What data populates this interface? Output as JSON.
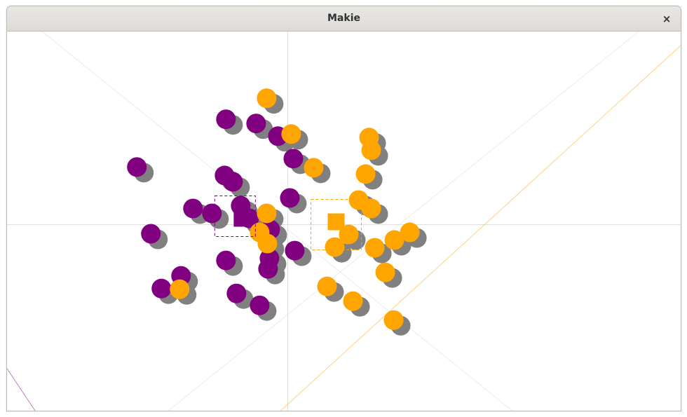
{
  "window": {
    "title": "Makie",
    "close_glyph": "×",
    "close_icon": "close-icon"
  },
  "colors": {
    "titlebar": "#e3e1de",
    "axis": "#dddddd",
    "shadow": "#808080",
    "series_a": "#800080",
    "series_b": "#ffa500"
  },
  "chart_data": {
    "type": "scatter",
    "title": "",
    "xlabel": "",
    "ylabel": "",
    "xlim": [
      -4,
      5.6
    ],
    "ylim": [
      -2.65,
      2.75
    ],
    "grid": false,
    "series": [
      {
        "color": "#800080",
        "shadow_offset": [
          0.1,
          -0.08
        ],
        "center_marker": [
          -0.65,
          0.09
        ],
        "points": [
          [
            -0.88,
            1.5
          ],
          [
            -0.45,
            1.44
          ],
          [
            -0.14,
            1.26
          ],
          [
            0.08,
            0.94
          ],
          [
            -2.15,
            0.82
          ],
          [
            -0.9,
            0.7
          ],
          [
            -0.78,
            0.61
          ],
          [
            0.03,
            0.38
          ],
          [
            -1.35,
            0.23
          ],
          [
            -0.67,
            0.27
          ],
          [
            -1.08,
            0.16
          ],
          [
            -0.55,
            0.09
          ],
          [
            -0.25,
            -0.07
          ],
          [
            -1.95,
            -0.13
          ],
          [
            0.1,
            -0.37
          ],
          [
            -0.88,
            -0.51
          ],
          [
            -0.26,
            -0.48
          ],
          [
            -0.28,
            -0.63
          ],
          [
            -1.52,
            -0.73
          ],
          [
            -1.8,
            -0.91
          ],
          [
            -0.73,
            -0.98
          ],
          [
            -0.4,
            -1.15
          ]
        ]
      },
      {
        "color": "#ffa500",
        "shadow_offset": [
          0.1,
          -0.08
        ],
        "center_marker": [
          0.69,
          0.04
        ],
        "points": [
          [
            -0.3,
            1.8
          ],
          [
            0.05,
            1.29
          ],
          [
            0.37,
            0.81
          ],
          [
            1.16,
            1.24
          ],
          [
            1.19,
            1.06
          ],
          [
            1.11,
            0.72
          ],
          [
            1.01,
            0.35
          ],
          [
            1.19,
            0.23
          ],
          [
            -0.3,
            0.16
          ],
          [
            -0.4,
            -0.11
          ],
          [
            -0.29,
            -0.27
          ],
          [
            0.87,
            -0.14
          ],
          [
            0.67,
            -0.32
          ],
          [
            1.24,
            -0.33
          ],
          [
            1.52,
            -0.22
          ],
          [
            1.74,
            -0.11
          ],
          [
            1.39,
            -0.68
          ],
          [
            -1.54,
            -0.92
          ],
          [
            0.56,
            -0.88
          ],
          [
            0.93,
            -1.09
          ],
          [
            1.51,
            -1.36
          ]
        ]
      }
    ],
    "reference_lines": [
      {
        "kind": "axis",
        "orientation": "vertical",
        "value": 0
      },
      {
        "kind": "axis",
        "orientation": "horizontal",
        "value": 0
      },
      {
        "kind": "diagonal",
        "from": [
          -3.5,
          2.75
        ],
        "to": [
          3.2,
          -2.65
        ]
      },
      {
        "kind": "diagonal",
        "from": [
          -1.7,
          -2.65
        ],
        "to": [
          5.0,
          2.75
        ]
      },
      {
        "kind": "diagonal",
        "from": [
          -0.1,
          -2.65
        ],
        "to": [
          5.6,
          2.55
        ],
        "color": "#ffa500"
      },
      {
        "kind": "diagonal",
        "from": [
          -4.0,
          -2.05
        ],
        "to": [
          -3.6,
          -2.65
        ],
        "color": "#800080"
      }
    ]
  }
}
